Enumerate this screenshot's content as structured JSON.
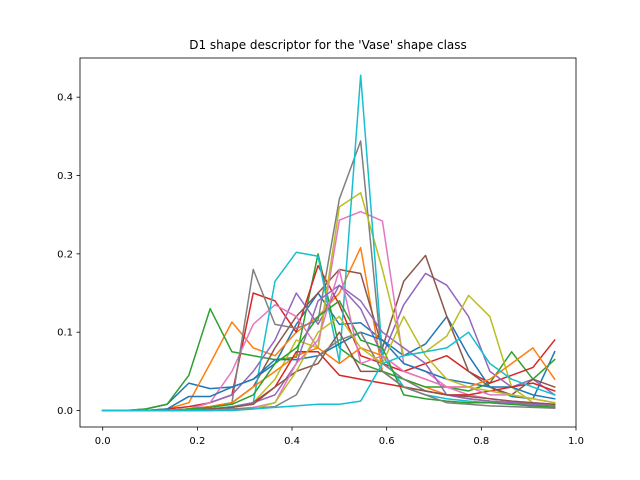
{
  "chart_data": {
    "type": "line",
    "title": "D1 shape descriptor for the 'Vase' shape class",
    "xlabel": "",
    "ylabel": "",
    "xlim": [
      -0.048,
      1.0
    ],
    "ylim": [
      -0.021,
      0.45
    ],
    "xticks": [
      0.0,
      0.2,
      0.4,
      0.6,
      0.8,
      1.0
    ],
    "yticks": [
      0.0,
      0.1,
      0.2,
      0.3,
      0.4
    ],
    "x": [
      0.0,
      0.045,
      0.091,
      0.136,
      0.182,
      0.227,
      0.273,
      0.318,
      0.364,
      0.409,
      0.455,
      0.5,
      0.545,
      0.591,
      0.636,
      0.682,
      0.727,
      0.773,
      0.818,
      0.864,
      0.909,
      0.955
    ],
    "grid": false,
    "legend": "none",
    "colors": [
      "#1f77b4",
      "#ff7f0e",
      "#2ca02c",
      "#d62728",
      "#9467bd",
      "#8c564b",
      "#e377c2",
      "#7f7f7f",
      "#bcbd22",
      "#17becf"
    ],
    "series": [
      {
        "values": [
          0.0,
          0.0,
          0.002,
          0.008,
          0.035,
          0.028,
          0.03,
          0.04,
          0.06,
          0.11,
          0.15,
          0.11,
          0.112,
          0.09,
          0.07,
          0.085,
          0.12,
          0.07,
          0.03,
          0.018,
          0.015,
          0.075
        ]
      },
      {
        "values": [
          0.0,
          0.0,
          0.0,
          0.002,
          0.01,
          0.06,
          0.113,
          0.08,
          0.07,
          0.1,
          0.12,
          0.15,
          0.208,
          0.05,
          0.04,
          0.03,
          0.02,
          0.015,
          0.012,
          0.01,
          0.008,
          0.005
        ]
      },
      {
        "values": [
          0.0,
          0.0,
          0.002,
          0.008,
          0.045,
          0.13,
          0.075,
          0.07,
          0.065,
          0.068,
          0.2,
          0.08,
          0.06,
          0.05,
          0.04,
          0.03,
          0.03,
          0.025,
          0.035,
          0.075,
          0.04,
          0.065
        ]
      },
      {
        "values": [
          0.0,
          0.0,
          0.0,
          0.002,
          0.005,
          0.01,
          0.02,
          0.15,
          0.14,
          0.1,
          0.185,
          0.135,
          0.07,
          0.06,
          0.05,
          0.06,
          0.07,
          0.05,
          0.035,
          0.045,
          0.055,
          0.09
        ]
      },
      {
        "values": [
          0.0,
          0.0,
          0.0,
          0.0,
          0.002,
          0.01,
          0.02,
          0.05,
          0.09,
          0.15,
          0.11,
          0.16,
          0.13,
          0.07,
          0.135,
          0.175,
          0.16,
          0.12,
          0.05,
          0.03,
          0.04,
          0.02
        ]
      },
      {
        "values": [
          0.0,
          0.0,
          0.0,
          0.0,
          0.002,
          0.005,
          0.01,
          0.03,
          0.08,
          0.12,
          0.15,
          0.18,
          0.175,
          0.08,
          0.165,
          0.198,
          0.12,
          0.05,
          0.03,
          0.02,
          0.04,
          0.03
        ]
      },
      {
        "values": [
          0.0,
          0.0,
          0.0,
          0.0,
          0.002,
          0.01,
          0.05,
          0.11,
          0.135,
          0.12,
          0.08,
          0.243,
          0.254,
          0.242,
          0.06,
          0.05,
          0.03,
          0.02,
          0.015,
          0.012,
          0.01,
          0.008
        ]
      },
      {
        "values": [
          0.0,
          0.0,
          0.0,
          0.0,
          0.002,
          0.005,
          0.01,
          0.18,
          0.11,
          0.105,
          0.115,
          0.27,
          0.344,
          0.06,
          0.04,
          0.025,
          0.02,
          0.015,
          0.012,
          0.01,
          0.008,
          0.005
        ]
      },
      {
        "values": [
          0.0,
          0.0,
          0.0,
          0.0,
          0.0,
          0.002,
          0.005,
          0.01,
          0.04,
          0.09,
          0.08,
          0.26,
          0.278,
          0.18,
          0.07,
          0.075,
          0.095,
          0.147,
          0.12,
          0.03,
          0.01,
          0.005
        ]
      },
      {
        "values": [
          0.0,
          0.0,
          0.0,
          0.0,
          0.0,
          0.002,
          0.005,
          0.01,
          0.165,
          0.202,
          0.197,
          0.062,
          0.428,
          0.07,
          0.03,
          0.02,
          0.015,
          0.012,
          0.01,
          0.008,
          0.006,
          0.004
        ]
      },
      {
        "values": [
          0.0,
          0.0,
          0.0,
          0.002,
          0.018,
          0.018,
          0.03,
          0.04,
          0.065,
          0.065,
          0.07,
          0.085,
          0.1,
          0.09,
          0.06,
          0.05,
          0.04,
          0.035,
          0.03,
          0.03,
          0.02,
          0.015
        ]
      },
      {
        "values": [
          0.0,
          0.0,
          0.0,
          0.0,
          0.002,
          0.005,
          0.01,
          0.03,
          0.05,
          0.07,
          0.08,
          0.06,
          0.08,
          0.07,
          0.05,
          0.04,
          0.03,
          0.03,
          0.04,
          0.06,
          0.08,
          0.04
        ]
      },
      {
        "values": [
          0.0,
          0.0,
          0.0,
          0.0,
          0.002,
          0.004,
          0.008,
          0.02,
          0.06,
          0.08,
          0.12,
          0.14,
          0.09,
          0.08,
          0.02,
          0.015,
          0.012,
          0.01,
          0.01,
          0.008,
          0.006,
          0.004
        ]
      },
      {
        "values": [
          0.0,
          0.0,
          0.0,
          0.0,
          0.0,
          0.002,
          0.004,
          0.01,
          0.03,
          0.075,
          0.075,
          0.045,
          0.04,
          0.035,
          0.03,
          0.025,
          0.02,
          0.02,
          0.025,
          0.03,
          0.035,
          0.025
        ]
      },
      {
        "values": [
          0.0,
          0.0,
          0.0,
          0.0,
          0.0,
          0.002,
          0.004,
          0.01,
          0.02,
          0.06,
          0.14,
          0.16,
          0.14,
          0.1,
          0.08,
          0.06,
          0.02,
          0.015,
          0.012,
          0.01,
          0.008,
          0.006
        ]
      },
      {
        "values": [
          0.0,
          0.0,
          0.0,
          0.0,
          0.0,
          0.002,
          0.004,
          0.008,
          0.03,
          0.05,
          0.06,
          0.1,
          0.05,
          0.05,
          0.03,
          0.025,
          0.02,
          0.018,
          0.015,
          0.012,
          0.01,
          0.008
        ]
      },
      {
        "values": [
          0.0,
          0.0,
          0.0,
          0.0,
          0.0,
          0.0,
          0.002,
          0.004,
          0.01,
          0.06,
          0.09,
          0.18,
          0.06,
          0.07,
          0.05,
          0.04,
          0.03,
          0.03,
          0.02,
          0.02,
          0.015,
          0.01
        ]
      },
      {
        "values": [
          0.0,
          0.0,
          0.0,
          0.0,
          0.0,
          0.0,
          0.002,
          0.003,
          0.005,
          0.02,
          0.07,
          0.09,
          0.1,
          0.05,
          0.03,
          0.02,
          0.01,
          0.008,
          0.006,
          0.005,
          0.004,
          0.003
        ]
      },
      {
        "values": [
          0.0,
          0.0,
          0.0,
          0.0,
          0.0,
          0.0,
          0.0,
          0.002,
          0.01,
          0.05,
          0.1,
          0.12,
          0.08,
          0.06,
          0.12,
          0.07,
          0.04,
          0.03,
          0.025,
          0.02,
          0.015,
          0.01
        ]
      },
      {
        "values": [
          0.0,
          0.0,
          0.0,
          0.0,
          0.0,
          0.0,
          0.0,
          0.002,
          0.004,
          0.006,
          0.008,
          0.008,
          0.012,
          0.06,
          0.07,
          0.075,
          0.08,
          0.1,
          0.06,
          0.04,
          0.03,
          0.02
        ]
      }
    ]
  }
}
